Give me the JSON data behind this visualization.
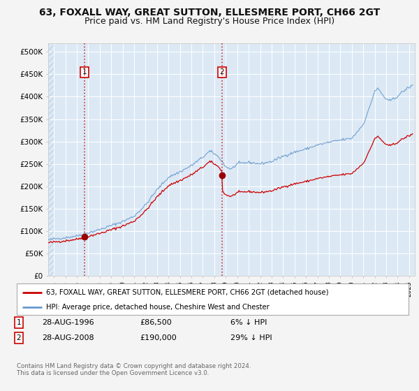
{
  "title": "63, FOXALL WAY, GREAT SUTTON, ELLESMERE PORT, CH66 2GT",
  "subtitle": "Price paid vs. HM Land Registry's House Price Index (HPI)",
  "title_fontsize": 10,
  "subtitle_fontsize": 9,
  "fig_bg_color": "#f4f4f4",
  "plot_bg_color": "#dce9f5",
  "hatch_color": "#c0d4e8",
  "grid_color": "#ffffff",
  "red_line_color": "#cc0000",
  "blue_line_color": "#6699cc",
  "marker_color": "#990000",
  "purchase1_date": 1996.66,
  "purchase1_price": 86500,
  "purchase2_date": 2008.66,
  "purchase2_price": 190000,
  "xmin": 1993.5,
  "xmax": 2025.5,
  "ymin": 0,
  "ymax": 520000,
  "yticks": [
    0,
    50000,
    100000,
    150000,
    200000,
    250000,
    300000,
    350000,
    400000,
    450000,
    500000
  ],
  "ytick_labels": [
    "£0",
    "£50K",
    "£100K",
    "£150K",
    "£200K",
    "£250K",
    "£300K",
    "£350K",
    "£400K",
    "£450K",
    "£500K"
  ],
  "xticks": [
    1994,
    1995,
    1996,
    1997,
    1998,
    1999,
    2000,
    2001,
    2002,
    2003,
    2004,
    2005,
    2006,
    2007,
    2008,
    2009,
    2010,
    2011,
    2012,
    2013,
    2014,
    2015,
    2016,
    2017,
    2018,
    2019,
    2020,
    2021,
    2022,
    2023,
    2024,
    2025
  ],
  "legend_red_label": "63, FOXALL WAY, GREAT SUTTON, ELLESMERE PORT, CH66 2GT (detached house)",
  "legend_blue_label": "HPI: Average price, detached house, Cheshire West and Chester",
  "note1_num": "1",
  "note1_date": "28-AUG-1996",
  "note1_price": "£86,500",
  "note1_hpi": "6% ↓ HPI",
  "note2_num": "2",
  "note2_date": "28-AUG-2008",
  "note2_price": "£190,000",
  "note2_hpi": "29% ↓ HPI",
  "copyright": "Contains HM Land Registry data © Crown copyright and database right 2024.\nThis data is licensed under the Open Government Licence v3.0."
}
